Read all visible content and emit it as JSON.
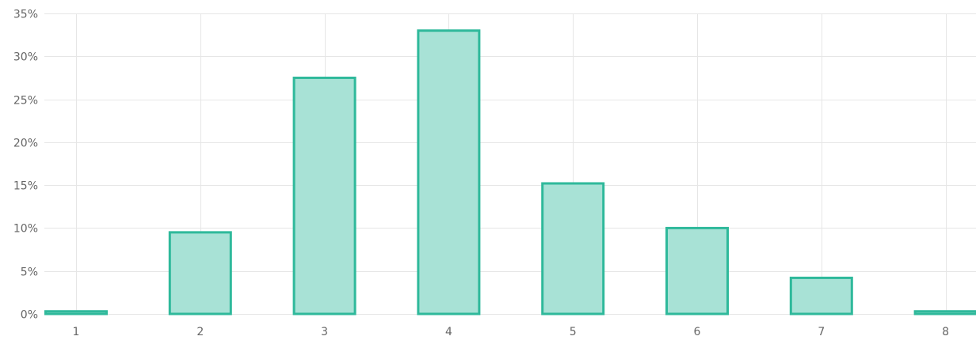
{
  "chart_data": {
    "type": "bar",
    "title": "",
    "xlabel": "",
    "ylabel": "",
    "categories": [
      "1",
      "2",
      "3",
      "4",
      "5",
      "6",
      "7",
      "8"
    ],
    "values": [
      0.3,
      9.5,
      27.5,
      33.0,
      15.2,
      10.0,
      4.2,
      0.3
    ],
    "ylim": [
      0,
      35
    ],
    "y_ticks": [
      0,
      5,
      10,
      15,
      20,
      25,
      30,
      35
    ],
    "y_tick_labels": [
      "0%",
      "5%",
      "10%",
      "15%",
      "20%",
      "25%",
      "30%",
      "35%"
    ],
    "grid": true,
    "legend": "none",
    "colors": {
      "bar_fill": "#a8e2d6",
      "bar_stroke": "#2fb99b",
      "grid": "#e6e6e6",
      "tick_text": "#666666"
    }
  }
}
